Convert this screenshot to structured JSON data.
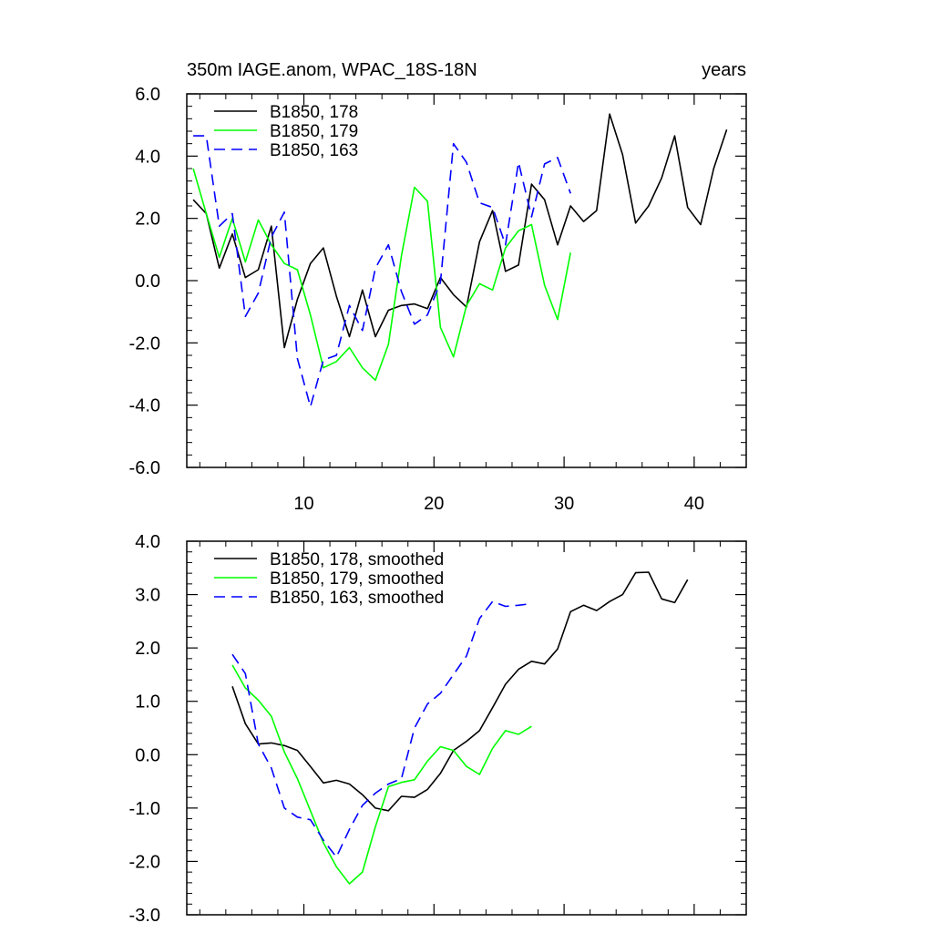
{
  "chart_data": [
    {
      "type": "line",
      "title": "350m IAGE.anom, WPAC_18S-18N",
      "title_right": "years",
      "xlabel": "",
      "ylabel": "",
      "xlim": [
        1,
        44
      ],
      "ylim": [
        -6,
        6
      ],
      "xticks": [
        10,
        20,
        30,
        40
      ],
      "xtick_labels": [
        "10",
        "20",
        "30",
        "40"
      ],
      "yticks": [
        -6,
        -4,
        -2,
        0,
        2,
        4,
        6
      ],
      "ytick_labels": [
        "-6.0",
        "-4.0",
        "-2.0",
        "0.0",
        "2.0",
        "4.0",
        "6.0"
      ],
      "legend_position": "top-left",
      "series": [
        {
          "name": "B1850, 178",
          "color": "#000000",
          "dash": "solid",
          "x": [
            1.5,
            2.5,
            3.5,
            4.5,
            5.5,
            6.5,
            7.5,
            8.5,
            9.5,
            10.5,
            11.5,
            12.5,
            13.5,
            14.5,
            15.5,
            16.5,
            17.5,
            18.5,
            19.5,
            20.5,
            21.5,
            22.5,
            23.5,
            24.5,
            25.5,
            26.5,
            27.5,
            28.5,
            29.5,
            30.5,
            31.5,
            32.5,
            33.5,
            34.5,
            35.5,
            36.5,
            37.5,
            38.5,
            39.5,
            40.5,
            41.5,
            42.5
          ],
          "values": [
            2.6,
            2.15,
            0.4,
            1.5,
            0.1,
            0.35,
            1.75,
            -2.15,
            -0.6,
            0.55,
            1.05,
            -0.5,
            -1.8,
            -0.3,
            -1.8,
            -0.95,
            -0.8,
            -0.75,
            -0.9,
            0.1,
            -0.45,
            -0.85,
            1.25,
            2.25,
            0.3,
            0.5,
            3.1,
            2.6,
            1.15,
            2.4,
            1.9,
            2.25,
            5.35,
            4.05,
            1.85,
            2.4,
            3.3,
            4.65,
            2.35,
            1.8,
            3.6,
            4.85
          ]
        },
        {
          "name": "B1850, 179",
          "color": "#00ff00",
          "dash": "solid",
          "x": [
            1.5,
            2.5,
            3.5,
            4.5,
            5.5,
            6.5,
            7.5,
            8.5,
            9.5,
            10.5,
            11.5,
            12.5,
            13.5,
            14.5,
            15.5,
            16.5,
            17.5,
            18.5,
            19.5,
            20.5,
            21.5,
            22.5,
            23.5,
            24.5,
            25.5,
            26.5,
            27.5,
            28.5,
            29.5,
            30.5
          ],
          "values": [
            3.6,
            2.15,
            0.75,
            2.0,
            0.6,
            1.95,
            1.15,
            0.55,
            0.35,
            -1.1,
            -2.8,
            -2.6,
            -2.15,
            -2.8,
            -3.2,
            -2.05,
            0.8,
            3.0,
            2.55,
            -1.5,
            -2.45,
            -0.8,
            -0.1,
            -0.3,
            1.05,
            1.6,
            1.8,
            -0.15,
            -1.25,
            0.9
          ]
        },
        {
          "name": "B1850, 163",
          "color": "#0000ff",
          "dash": "dashed",
          "x": [
            1.5,
            2.5,
            3.5,
            4.5,
            5.5,
            6.5,
            7.5,
            8.5,
            9.5,
            10.5,
            11.5,
            12.5,
            13.5,
            14.5,
            15.5,
            16.5,
            17.5,
            18.5,
            19.5,
            20.5,
            21.5,
            22.5,
            23.5,
            24.5,
            25.5,
            26.5,
            27.5,
            28.5,
            29.5,
            30.5
          ],
          "values": [
            4.65,
            4.65,
            1.75,
            2.15,
            -1.15,
            -0.4,
            1.4,
            2.2,
            -2.5,
            -4.05,
            -2.55,
            -2.4,
            -0.8,
            -1.6,
            0.4,
            1.15,
            -0.35,
            -1.4,
            -1.1,
            -0.05,
            4.4,
            3.8,
            2.5,
            2.35,
            1.15,
            3.8,
            2.05,
            3.75,
            3.95,
            2.8
          ]
        }
      ]
    },
    {
      "type": "line",
      "title": "",
      "xlabel": "",
      "ylabel": "",
      "xlim": [
        1,
        44
      ],
      "ylim": [
        -3,
        4
      ],
      "xticks": [
        10,
        20,
        30,
        40
      ],
      "yticks": [
        -3,
        -2,
        -1,
        0,
        1,
        2,
        3,
        4
      ],
      "ytick_labels": [
        "-3.0",
        "-2.0",
        "-1.0",
        "0.0",
        "1.0",
        "2.0",
        "3.0",
        "4.0"
      ],
      "legend_position": "top-left",
      "series": [
        {
          "name": "B1850, 178, smoothed",
          "color": "#000000",
          "dash": "solid",
          "x": [
            4.5,
            5.5,
            6.5,
            7.5,
            8.5,
            9.5,
            10.5,
            11.5,
            12.5,
            13.5,
            14.5,
            15.5,
            16.5,
            17.5,
            18.5,
            19.5,
            20.5,
            21.5,
            22.5,
            23.5,
            24.5,
            25.5,
            26.5,
            27.5,
            28.5,
            29.5,
            30.5,
            31.5,
            32.5,
            33.5,
            34.5,
            35.5,
            36.5,
            37.5,
            38.5,
            39.5
          ],
          "values": [
            1.28,
            0.58,
            0.2,
            0.22,
            0.17,
            0.08,
            -0.22,
            -0.53,
            -0.48,
            -0.55,
            -0.75,
            -1.0,
            -1.05,
            -0.78,
            -0.8,
            -0.65,
            -0.35,
            0.08,
            0.25,
            0.45,
            0.88,
            1.32,
            1.6,
            1.75,
            1.7,
            1.98,
            2.68,
            2.8,
            2.7,
            2.87,
            3.0,
            3.41,
            3.42,
            2.92,
            2.85,
            3.28
          ]
        },
        {
          "name": "B1850, 179, smoothed",
          "color": "#00ff00",
          "dash": "solid",
          "x": [
            4.5,
            5.5,
            6.5,
            7.5,
            8.5,
            9.5,
            10.5,
            11.5,
            12.5,
            13.5,
            14.5,
            15.5,
            16.5,
            17.5,
            18.5,
            19.5,
            20.5,
            21.5,
            22.5,
            23.5,
            24.5,
            25.5,
            26.5,
            27.5
          ],
          "values": [
            1.68,
            1.25,
            1.02,
            0.72,
            0.05,
            -0.45,
            -1.05,
            -1.65,
            -2.1,
            -2.42,
            -2.2,
            -1.35,
            -0.6,
            -0.52,
            -0.47,
            -0.12,
            0.15,
            0.08,
            -0.22,
            -0.37,
            0.12,
            0.45,
            0.38,
            0.53
          ]
        },
        {
          "name": "B1850, 163, smoothed",
          "color": "#0000ff",
          "dash": "dashed",
          "x": [
            4.5,
            5.5,
            6.5,
            7.5,
            8.5,
            9.5,
            10.5,
            11.5,
            12.5,
            13.5,
            14.5,
            15.5,
            16.5,
            17.5,
            18.5,
            19.5,
            20.5,
            21.5,
            22.5,
            23.5,
            24.5,
            25.5,
            26.5,
            27.5
          ],
          "values": [
            1.88,
            1.52,
            0.2,
            -0.25,
            -1.0,
            -1.17,
            -1.22,
            -1.6,
            -1.92,
            -1.4,
            -0.95,
            -0.72,
            -0.55,
            -0.45,
            0.5,
            0.95,
            1.15,
            1.5,
            1.85,
            2.55,
            2.87,
            2.78,
            2.8,
            2.83
          ]
        }
      ]
    }
  ]
}
